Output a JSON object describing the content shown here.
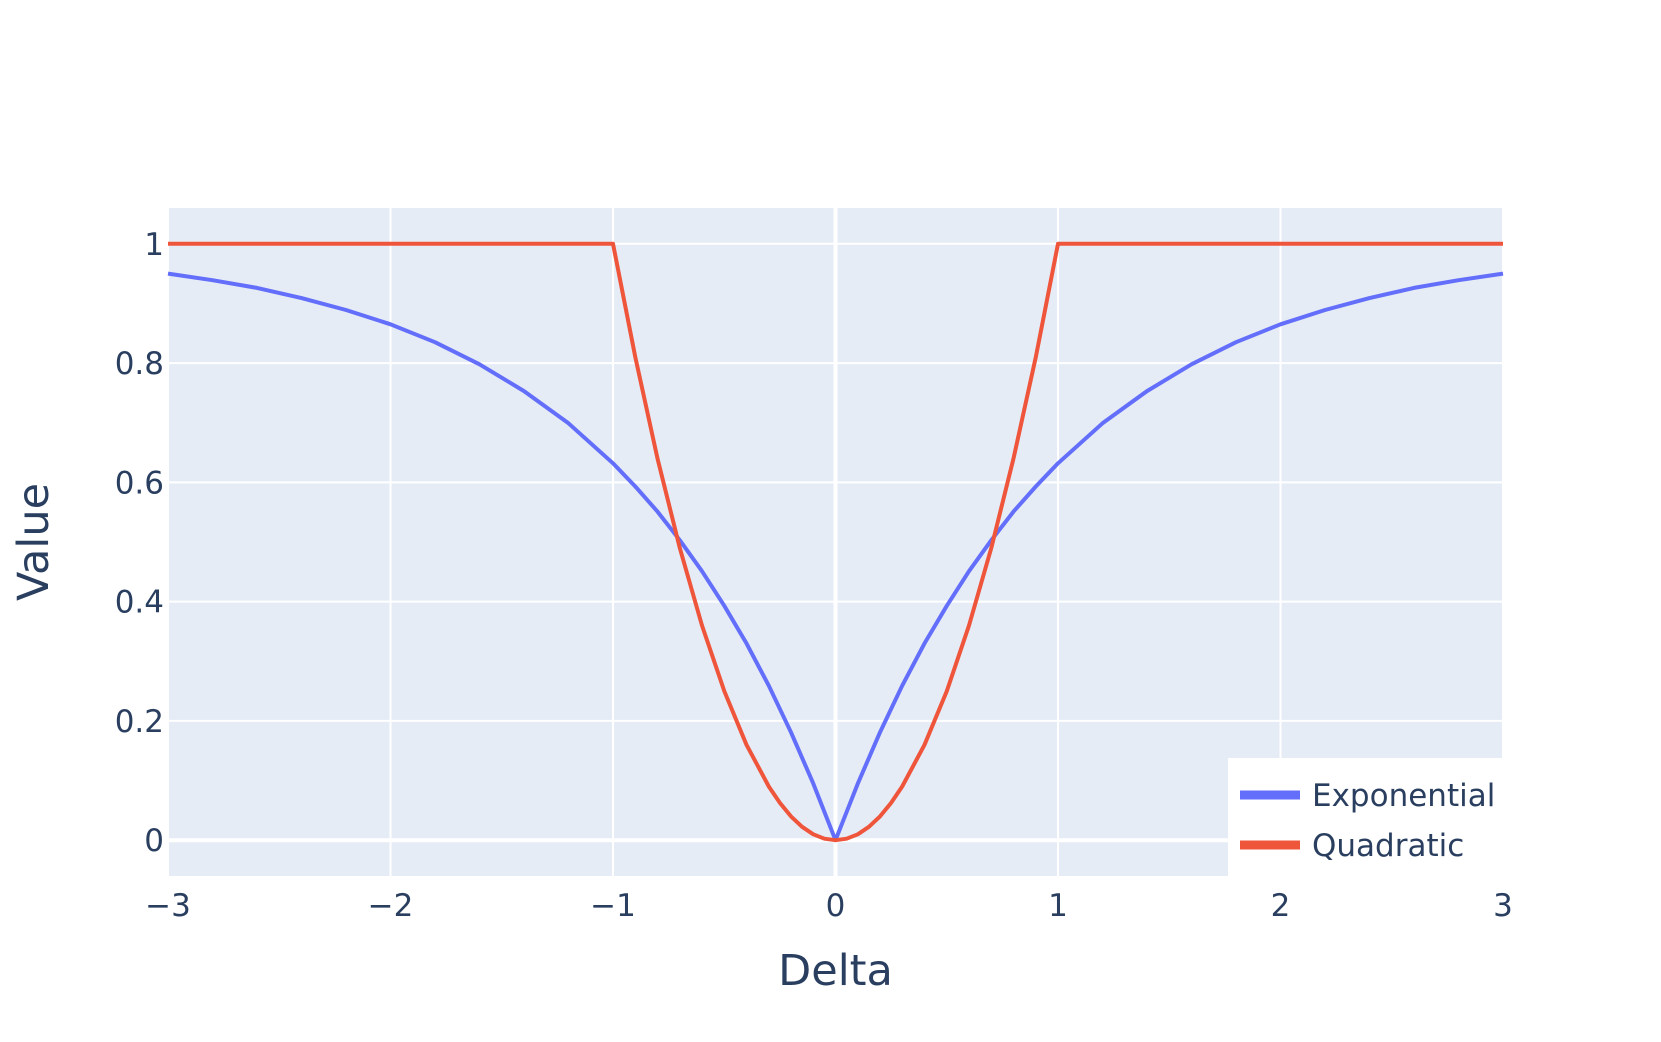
{
  "chart_data": {
    "type": "line",
    "title": "",
    "xlabel": "Delta",
    "ylabel": "Value",
    "xlim": [
      -3,
      3
    ],
    "ylim": [
      -0.06,
      1.06
    ],
    "x_ticks": [
      -3,
      -2,
      -1,
      0,
      1,
      2,
      3
    ],
    "x_tick_labels": [
      "−3",
      "−2",
      "−1",
      "0",
      "1",
      "2",
      "3"
    ],
    "y_ticks": [
      0,
      0.2,
      0.4,
      0.6,
      0.8,
      1
    ],
    "y_tick_labels": [
      "0",
      "0.2",
      "0.4",
      "0.6",
      "0.8",
      "1"
    ],
    "grid": true,
    "legend_position": "bottom-right",
    "plot_background": "#e5ecf6",
    "series": [
      {
        "name": "Exponential",
        "color": "#636efa",
        "x": [
          -3,
          -2.8,
          -2.6,
          -2.4,
          -2.2,
          -2.0,
          -1.8,
          -1.6,
          -1.4,
          -1.2,
          -1.0,
          -0.9,
          -0.8,
          -0.7,
          -0.6,
          -0.5,
          -0.4,
          -0.3,
          -0.2,
          -0.1,
          0,
          0.1,
          0.2,
          0.3,
          0.4,
          0.5,
          0.6,
          0.7,
          0.8,
          0.9,
          1.0,
          1.2,
          1.4,
          1.6,
          1.8,
          2.0,
          2.2,
          2.4,
          2.6,
          2.8,
          3.0
        ],
        "y": [
          0.95,
          0.939,
          0.926,
          0.909,
          0.889,
          0.865,
          0.835,
          0.798,
          0.753,
          0.699,
          0.632,
          0.593,
          0.551,
          0.503,
          0.451,
          0.393,
          0.33,
          0.259,
          0.181,
          0.095,
          0,
          0.095,
          0.181,
          0.259,
          0.33,
          0.393,
          0.451,
          0.503,
          0.551,
          0.593,
          0.632,
          0.699,
          0.753,
          0.798,
          0.835,
          0.865,
          0.889,
          0.909,
          0.926,
          0.939,
          0.95
        ]
      },
      {
        "name": "Quadratic",
        "color": "#ef553b",
        "x": [
          -3,
          -2,
          -1.0,
          -0.9,
          -0.8,
          -0.7,
          -0.6,
          -0.5,
          -0.4,
          -0.3,
          -0.25,
          -0.2,
          -0.15,
          -0.1,
          -0.05,
          0,
          0.05,
          0.1,
          0.15,
          0.2,
          0.25,
          0.3,
          0.4,
          0.5,
          0.6,
          0.7,
          0.8,
          0.9,
          1.0,
          2,
          3
        ],
        "y": [
          1,
          1,
          1,
          0.81,
          0.64,
          0.49,
          0.36,
          0.25,
          0.16,
          0.09,
          0.0625,
          0.04,
          0.0225,
          0.01,
          0.0025,
          0,
          0.0025,
          0.01,
          0.0225,
          0.04,
          0.0625,
          0.09,
          0.16,
          0.25,
          0.36,
          0.49,
          0.64,
          0.81,
          1,
          1,
          1
        ]
      }
    ]
  }
}
